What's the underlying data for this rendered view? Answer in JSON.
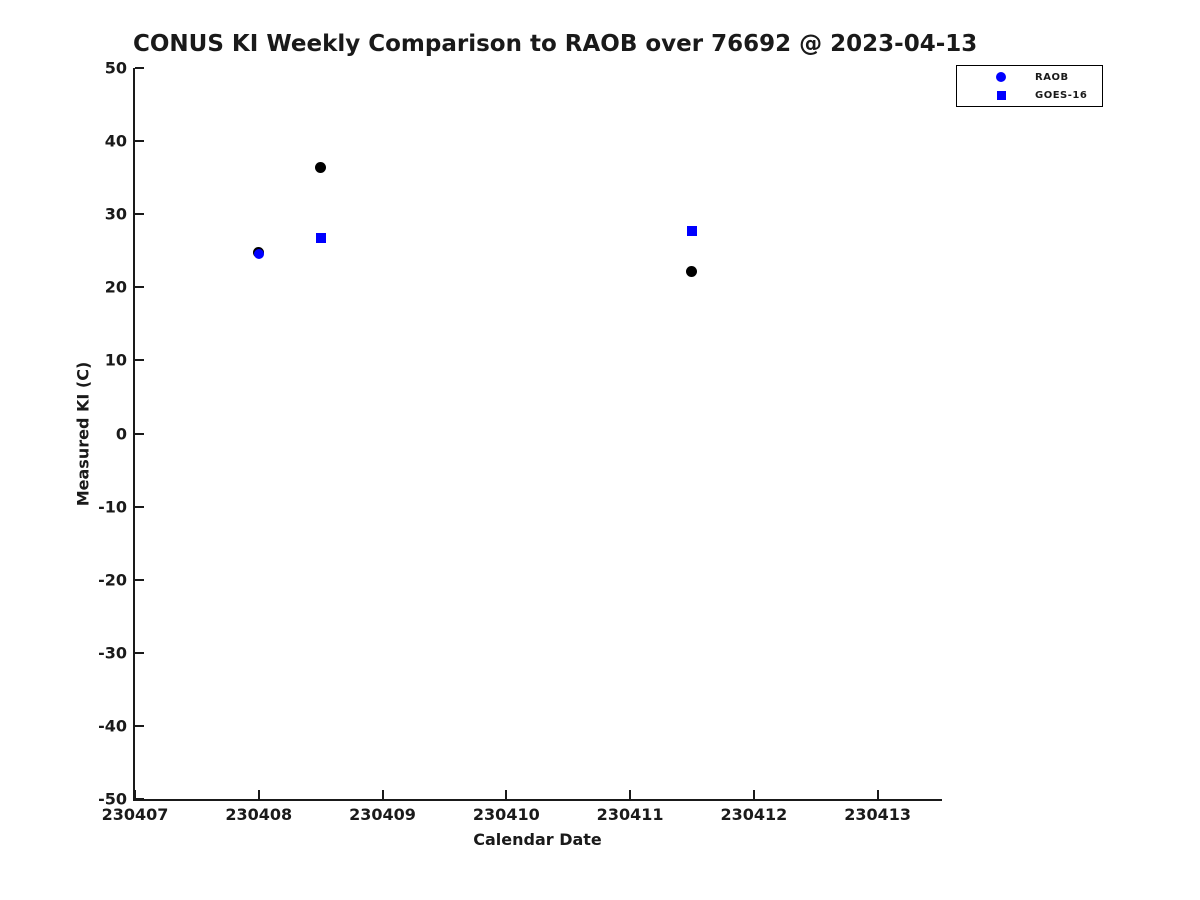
{
  "chart_data": {
    "type": "scatter",
    "title": "CONUS KI Weekly Comparison to RAOB over 76692 @ 2023-04-13",
    "xlabel": "Calendar Date",
    "ylabel": "Measured KI (C)",
    "xlim": [
      230407,
      230413.52
    ],
    "ylim": [
      -50,
      50
    ],
    "grid": false,
    "legend_position": "outside-upper-right",
    "x_ticks": {
      "values": [
        230407,
        230408,
        230409,
        230410,
        230411,
        230412,
        230413
      ],
      "labels": [
        "230407",
        "230408",
        "230409",
        "230410",
        "230411",
        "230412",
        "230413"
      ]
    },
    "y_ticks": {
      "values": [
        50,
        40,
        30,
        20,
        10,
        0,
        -10,
        -20,
        -30,
        -40,
        -50
      ],
      "labels": [
        "50",
        "40",
        "30",
        "20",
        "10",
        "0",
        "-10",
        "-20",
        "-30",
        "-40",
        "-50"
      ]
    },
    "series": [
      {
        "name": "black-dots-unlabeled",
        "marker": "circle",
        "color": "#000000",
        "marker_size": 11,
        "points": [
          [
            230408.0,
            24.8
          ],
          [
            230408.5,
            36.4
          ],
          [
            230411.5,
            22.1
          ]
        ]
      },
      {
        "name": "RAOB",
        "marker": "circle",
        "color": "#0000ff",
        "marker_size": 10,
        "points": [
          [
            230408.0,
            24.5
          ]
        ]
      },
      {
        "name": "GOES-16",
        "marker": "square",
        "color": "#0000ff",
        "marker_size": 10,
        "points": [
          [
            230408.5,
            26.7
          ],
          [
            230411.5,
            27.7
          ]
        ]
      }
    ]
  },
  "legend": {
    "items": [
      {
        "label": "RAOB",
        "marker": "circle",
        "color": "#0000ff"
      },
      {
        "label": "GOES-16",
        "marker": "square",
        "color": "#0000ff"
      }
    ]
  },
  "colors": {
    "accent_blue": "#0000ff",
    "series_black": "#000000",
    "axis": "#1a1a1a",
    "background": "#ffffff"
  }
}
